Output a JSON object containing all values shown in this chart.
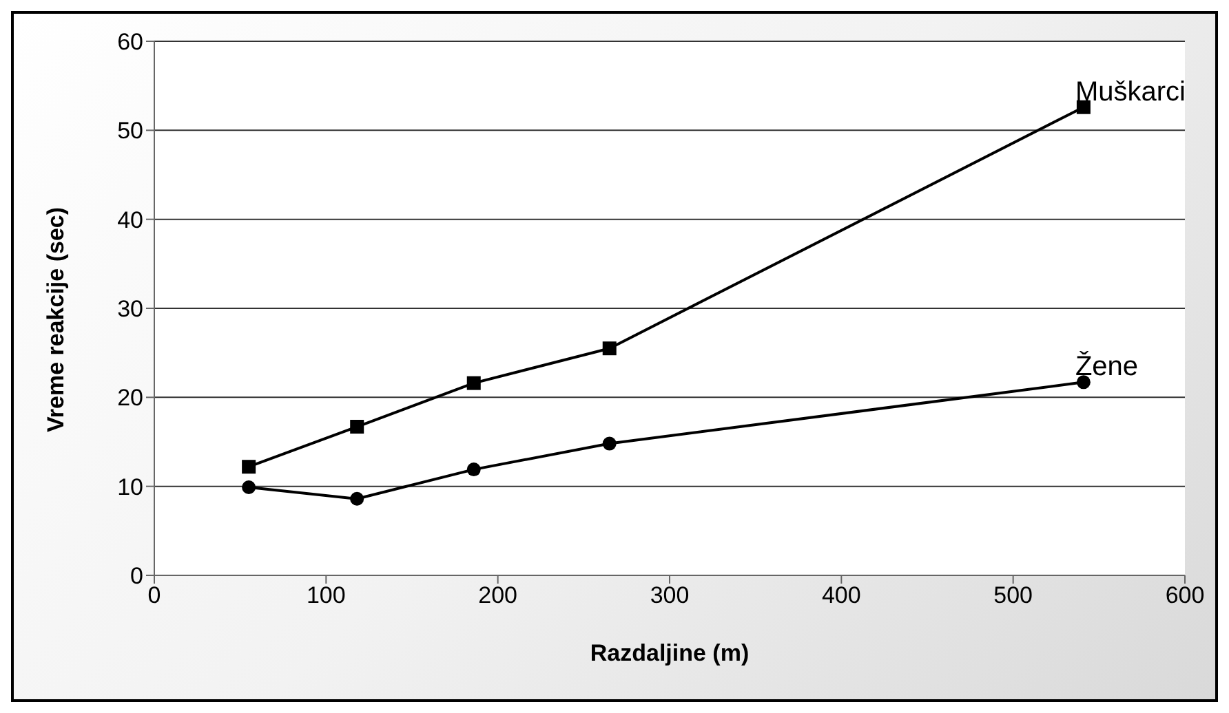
{
  "chart_data": {
    "type": "line",
    "xlabel": "Razdaljine (m)",
    "ylabel": "Vreme reakcije (sec)",
    "x": [
      55,
      118,
      186,
      265,
      541
    ],
    "series": [
      {
        "name": "Muškarci",
        "color": "#000000",
        "marker": "square",
        "values": [
          12.2,
          16.7,
          21.6,
          25.5,
          52.6
        ]
      },
      {
        "name": "Žene",
        "color": "#000000",
        "marker": "circle",
        "values": [
          9.9,
          8.6,
          11.9,
          14.8,
          21.7
        ]
      }
    ],
    "xlim": [
      0,
      600
    ],
    "xticks": [
      0,
      100,
      200,
      300,
      400,
      500,
      600
    ],
    "ylim": [
      0,
      60
    ],
    "yticks": [
      0,
      10,
      20,
      30,
      40,
      50,
      60
    ],
    "grid": "y",
    "line_style": "solid"
  }
}
